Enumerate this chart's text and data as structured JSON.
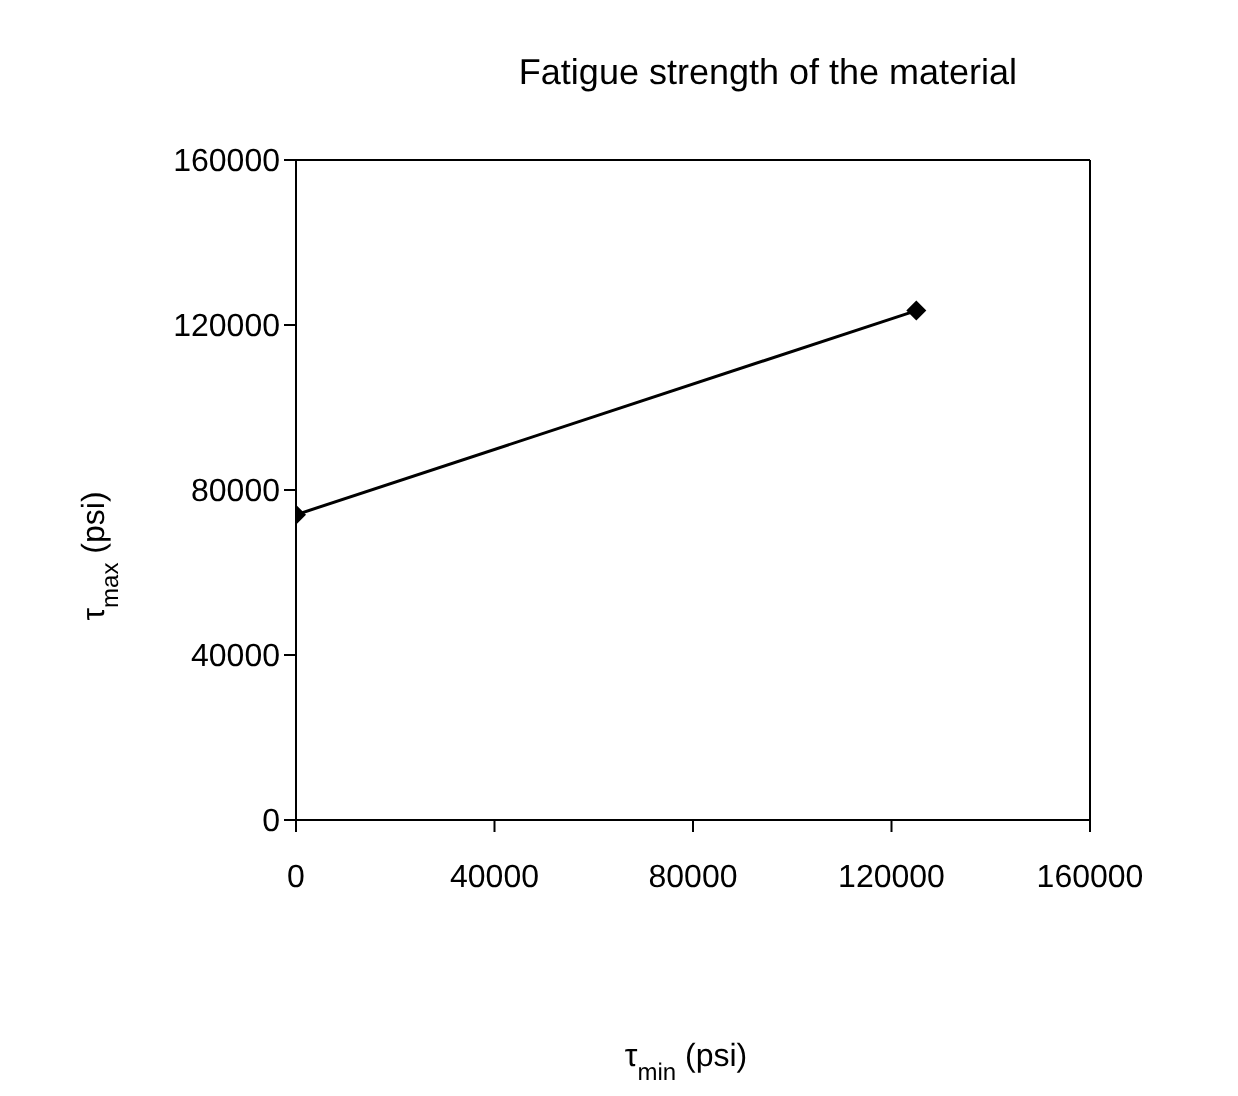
{
  "chart_data": {
    "type": "line",
    "title": "Fatigue strength of the material",
    "xlabel": "τ$_{min}$ (psi)",
    "ylabel": "τ$_{max}$ (psi)",
    "x": [
      0,
      125000
    ],
    "series": [
      {
        "color": "#000000",
        "values": [
          74000,
          123500
        ]
      }
    ],
    "xlim": [
      0,
      160000
    ],
    "xticks": [
      0,
      40000,
      80000,
      120000,
      160000
    ],
    "ylim": [
      0,
      160000
    ],
    "yticks": [
      0,
      40000,
      80000,
      120000,
      160000
    ],
    "grid": false,
    "legend": false,
    "marker": "diamond",
    "line_style": "solid"
  }
}
